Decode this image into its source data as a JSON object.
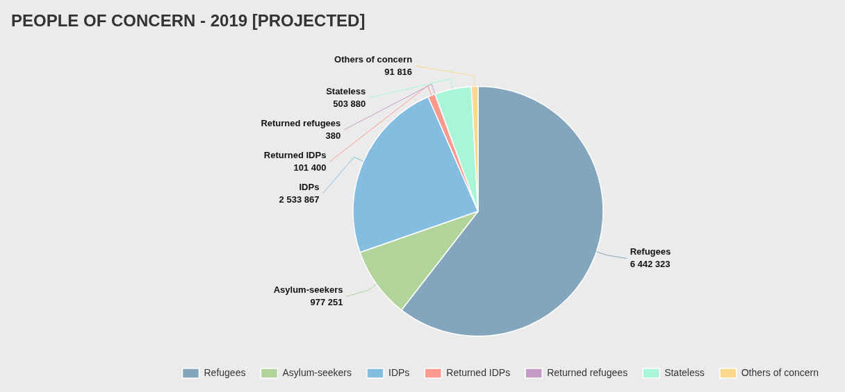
{
  "chart_data": {
    "type": "pie",
    "title": "PEOPLE OF CONCERN - 2019 [PROJECTED]",
    "categories": [
      "Refugees",
      "Asylum-seekers",
      "IDPs",
      "Returned IDPs",
      "Returned refugees",
      "Stateless",
      "Others of concern"
    ],
    "values": [
      6442323,
      977251,
      2533867,
      101400,
      380,
      503880,
      91816
    ],
    "value_labels": [
      "6 442 323",
      "977 251",
      "2 533 867",
      "101 400",
      "380",
      "503 880",
      "91 816"
    ],
    "colors": [
      "#84a6bd",
      "#b1d49b",
      "#85bde0",
      "#fa9a8f",
      "#c49bc7",
      "#a8f5d8",
      "#f9d88e"
    ],
    "legend": "bottom"
  }
}
